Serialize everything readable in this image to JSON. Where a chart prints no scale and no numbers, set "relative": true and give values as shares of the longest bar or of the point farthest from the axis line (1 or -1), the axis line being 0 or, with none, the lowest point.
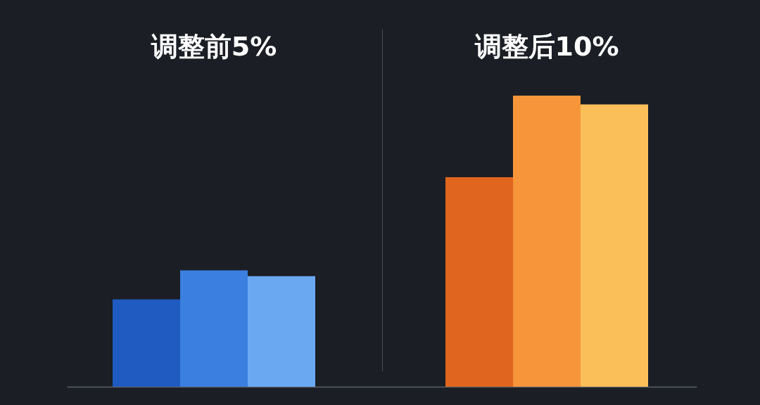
{
  "chart_data": {
    "type": "bar",
    "relative": true,
    "categories": [
      null,
      null,
      null,
      null,
      null,
      null
    ],
    "values": [
      0.3,
      0.4,
      0.38,
      0.72,
      1,
      0.97
    ],
    "colors": [
      "#1f5bc0",
      "#3b7fe0",
      "#6aa8f2",
      "#e0651e",
      "#f7953a",
      "#fbbf5a"
    ],
    "annotations": [
      "调整前5%",
      "调整后10%"
    ]
  }
}
